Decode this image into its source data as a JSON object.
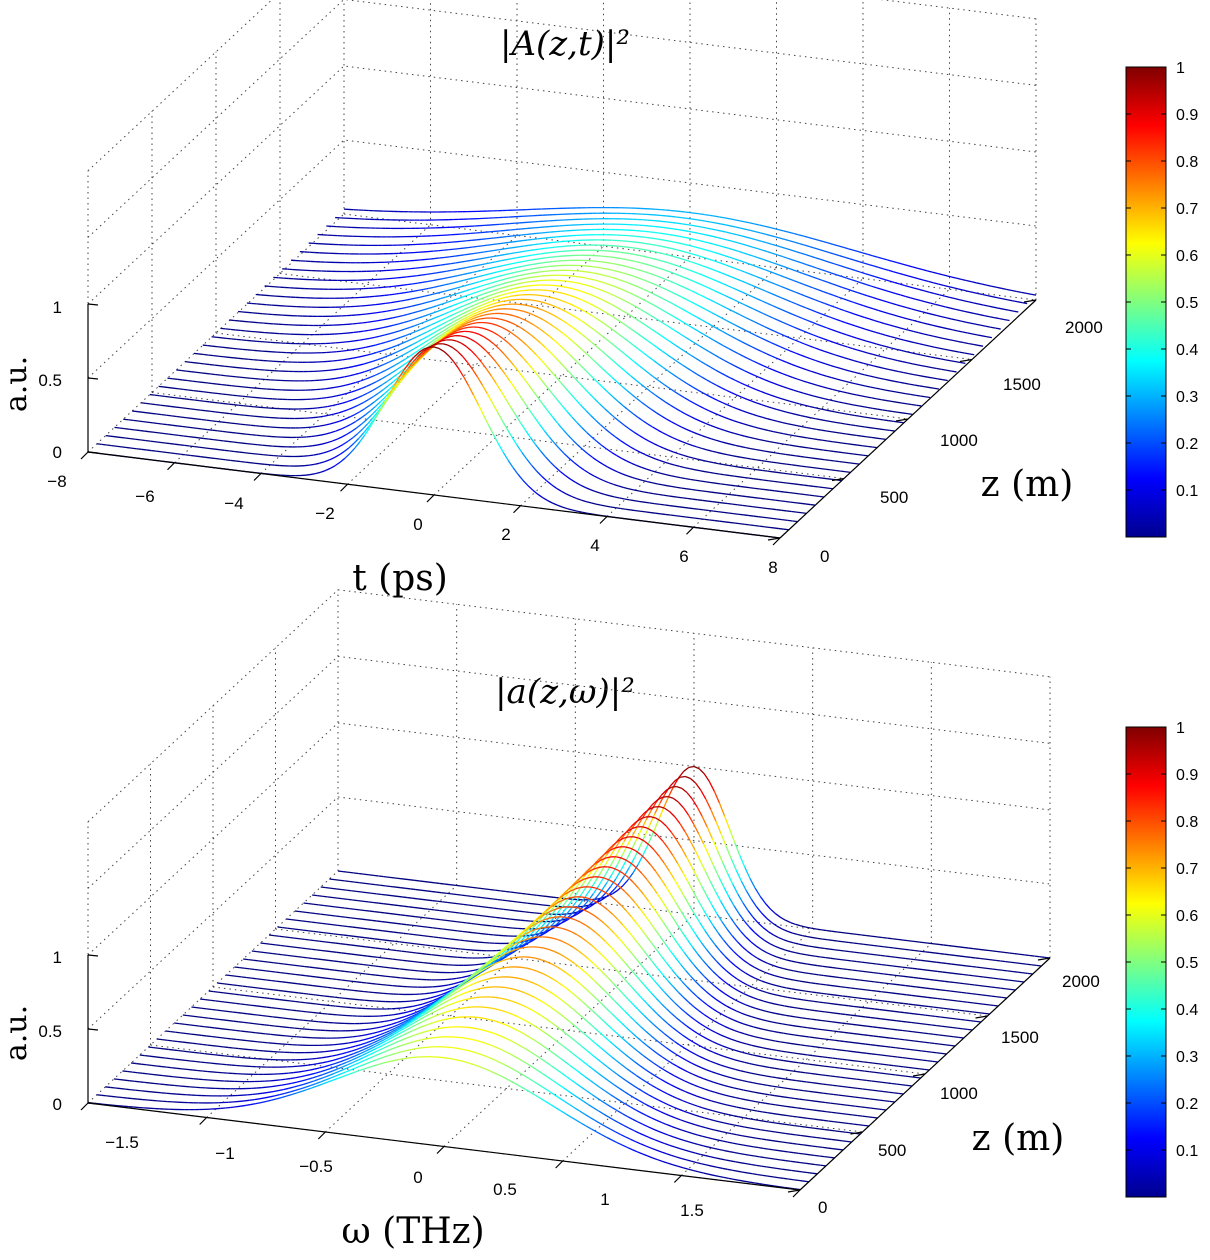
{
  "chart_data": [
    {
      "type": "waterfall-3d",
      "title": "|A(z,t)|²",
      "xlabel": "t (ps)",
      "ylabel": "a.u.",
      "zlabel": "z (m)",
      "x_ticks": [
        "−8",
        "−6",
        "−4",
        "−2",
        "0",
        "2",
        "4",
        "6",
        "8"
      ],
      "z_ticks": [
        "0",
        "500",
        "1000",
        "1500",
        "2000"
      ],
      "y_ticks": [
        "0",
        "0.5",
        "1"
      ],
      "xlim": [
        -8,
        8
      ],
      "zlim": [
        0,
        2000
      ],
      "ylim": [
        0,
        1
      ],
      "colorbar_ticks": [
        "0.1",
        "0.2",
        "0.3",
        "0.4",
        "0.5",
        "0.6",
        "0.7",
        "0.8",
        "0.9",
        "1"
      ],
      "colormap": "jet",
      "grid": true,
      "pulse": {
        "peak_at_z0": 1.0,
        "peak_at_zmax": 0.3,
        "center_t": 0,
        "width_at_z0_ps": 1.1,
        "width_at_zmax_ps": 3.8
      },
      "num_curves": 30
    },
    {
      "type": "waterfall-3d",
      "title": "|a(z,ω)|²",
      "xlabel": "ω (THz)",
      "ylabel": "a.u.",
      "zlabel": "z (m)",
      "x_ticks": [
        "−1.5",
        "−1",
        "−0.5",
        "0",
        "0.5",
        "1",
        "1.5"
      ],
      "z_ticks": [
        "0",
        "500",
        "1000",
        "1500",
        "2000"
      ],
      "y_ticks": [
        "0",
        "0.5",
        "1"
      ],
      "xlim": [
        -1.8,
        1.8
      ],
      "zlim": [
        0,
        2000
      ],
      "ylim": [
        0,
        1
      ],
      "colorbar_ticks": [
        "0.1",
        "0.2",
        "0.3",
        "0.4",
        "0.5",
        "0.6",
        "0.7",
        "0.8",
        "0.9",
        "1"
      ],
      "colormap": "jet",
      "grid": true,
      "spectrum": {
        "peak_at_z0": 0.6,
        "peak_at_zmax": 1.0,
        "center_omega": 0,
        "width_at_z0_thz": 0.55,
        "width_at_zmax_thz": 0.18
      },
      "num_curves": 30
    }
  ]
}
